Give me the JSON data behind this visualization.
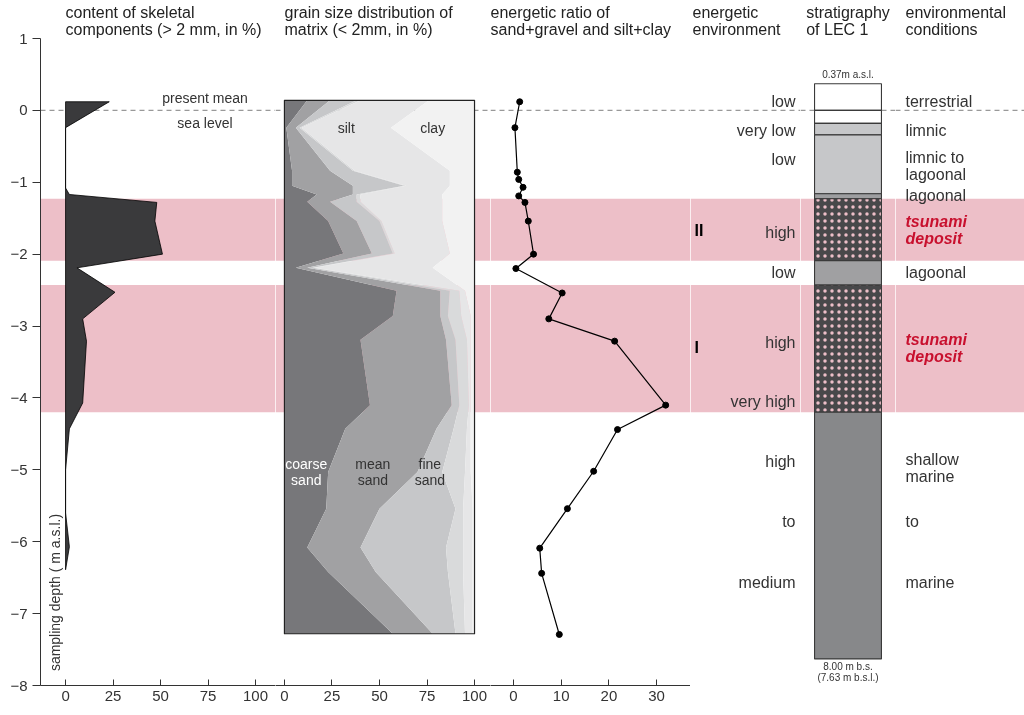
{
  "chart_data": [
    {
      "type": "area",
      "orientation": "horizontal",
      "title": "content of skeletal\ncomponents (> 2 mm, in %)",
      "ylabel": "sampling depth ( m a.s.l.)",
      "color": "#3a3a3c",
      "x": [
        0.12,
        -0.24,
        -1.08,
        -1.17,
        -1.28,
        -1.54,
        -2.0,
        -2.19,
        -2.53,
        -2.9,
        -3.21,
        -4.07,
        -4.43,
        -5.0,
        -5.6,
        -6.07,
        -6.39
      ],
      "values": [
        23,
        0,
        0,
        2,
        48,
        47,
        51,
        6,
        26,
        9,
        11,
        9,
        2,
        0,
        0,
        2,
        0
      ],
      "xlim": [
        -13.2,
        110.5
      ],
      "xticks": [
        0,
        25,
        50,
        75,
        100
      ],
      "ylim": [
        -8,
        1
      ],
      "yticks": [
        1,
        0,
        -1,
        -2,
        -3,
        -4,
        -5,
        -6,
        -7,
        -8
      ],
      "ref_lines": [
        {
          "axis": "y",
          "value": 0,
          "label": "present mean\nsea level",
          "color": "#999999",
          "line_style": "dashed"
        }
      ],
      "bands": [
        {
          "axis": "y",
          "from": -1.23,
          "to": -2.09,
          "color": "#edbfc8"
        },
        {
          "axis": "y",
          "from": -2.43,
          "to": -4.2,
          "color": "#edbfc8"
        }
      ]
    },
    {
      "type": "area",
      "orientation": "horizontal",
      "stacked": true,
      "title": "grain size distribution of\nmatrix (< 2mm, in %)",
      "x": [
        0.14,
        -0.24,
        -0.84,
        -1.05,
        -1.17,
        -1.27,
        -1.54,
        -1.99,
        -2.19,
        -2.51,
        -2.86,
        -3.19,
        -4.1,
        -4.43,
        -5.03,
        -5.54,
        -6.08,
        -6.42,
        -7.28
      ],
      "series": [
        {
          "name": "coarse sand",
          "color": "#77777a",
          "values": [
            12,
            1,
            4,
            4,
            17,
            12,
            23,
            31,
            6,
            59,
            57,
            40,
            45,
            32,
            23,
            22,
            12,
            23,
            57
          ]
        },
        {
          "name": "mean sand",
          "color": "#a1a1a3",
          "values": [
            12,
            5,
            20,
            32,
            19,
            12,
            15,
            15,
            6,
            23,
            25,
            45,
            43,
            48,
            47,
            28,
            28,
            25,
            21
          ]
        },
        {
          "name": "fine sand",
          "color": "#c6c7c9",
          "values": [
            14,
            2,
            12,
            27,
            2,
            14,
            12,
            11,
            3,
            5,
            4,
            5,
            4,
            9,
            13,
            40,
            45,
            38,
            12
          ]
        },
        {
          "color": "#d9dadb",
          "values": [
            2,
            1,
            1,
            1,
            2,
            2,
            1,
            1,
            1,
            5,
            7,
            6,
            5,
            7,
            12,
            4,
            9,
            8,
            5
          ]
        },
        {
          "name": "silt",
          "color": "#e6e6e7",
          "values": [
            36,
            47,
            50,
            23,
            43,
            43,
            32,
            29,
            62,
            3,
            5,
            2,
            1,
            2,
            3,
            5,
            5,
            5,
            4
          ]
        },
        {
          "name": "clay",
          "color": "#f2f2f2",
          "values": [
            24,
            44,
            13,
            13,
            17,
            17,
            17,
            13,
            22,
            5,
            2,
            2,
            2,
            2,
            2,
            1,
            1,
            1,
            1
          ]
        }
      ],
      "xlim": [
        -4.7,
        108.4
      ],
      "xticks": [
        0,
        25,
        50,
        75,
        100
      ],
      "ylim": [
        -8,
        1
      ],
      "tick_labels": "x",
      "ref_lines": [
        {
          "axis": "y",
          "value": 0,
          "color": "#999999",
          "line_style": "dashed"
        }
      ],
      "bands": [
        {
          "axis": "y",
          "from": -1.23,
          "to": -2.09,
          "color": "#edbfc8"
        },
        {
          "axis": "y",
          "from": -2.43,
          "to": -4.2,
          "color": "#edbfc8"
        }
      ]
    },
    {
      "type": "line",
      "orientation": "horizontal",
      "marker": "circle",
      "line_style": "solid",
      "color": "#000000",
      "title": "energetic ratio of\nsand+gravel and silt+clay",
      "x": [
        0.12,
        -0.24,
        -0.86,
        -0.96,
        -1.07,
        -1.19,
        -1.28,
        -1.54,
        -2.0,
        -2.2,
        -2.54,
        -2.9,
        -3.21,
        -4.1,
        -4.44,
        -5.02,
        -5.54,
        -6.09,
        -6.44,
        -7.29
      ],
      "values": [
        1.3,
        0.3,
        0.8,
        1.1,
        2.0,
        1.1,
        2.4,
        3.1,
        4.2,
        0.5,
        10.2,
        7.4,
        21.2,
        31.9,
        21.8,
        16.8,
        11.3,
        5.5,
        5.9,
        9.6
      ],
      "xlim": [
        -4.82,
        37.1
      ],
      "xticks": [
        0,
        10,
        20,
        30
      ],
      "ylim": [
        -8,
        1
      ],
      "tick_labels": "x",
      "ref_lines": [
        {
          "axis": "y",
          "value": 0,
          "color": "#999999",
          "line_style": "dashed"
        }
      ],
      "bands": [
        {
          "axis": "y",
          "from": -1.23,
          "to": -2.09,
          "color": "#edbfc8"
        },
        {
          "axis": "y",
          "from": -2.43,
          "to": -4.2,
          "color": "#edbfc8"
        }
      ]
    },
    {
      "type": "other",
      "title": "energetic\nenvironment",
      "annotations": [
        "low",
        "very low",
        "low",
        "II",
        "high",
        "low",
        "I",
        "high",
        "very high",
        "high",
        "to",
        "medium"
      ]
    },
    {
      "type": "bar",
      "stacked": true,
      "title": "stratigraphy\nof LEC 1",
      "categories": [
        null
      ],
      "ylim": [
        -8,
        1
      ],
      "tick_labels": false,
      "series": [
        {
          "color": "#ffffff",
          "values": [
            0.37
          ]
        },
        {
          "color": "#ffffff",
          "values": [
            -0.18
          ]
        },
        {
          "color": "#c6c7c9",
          "values": [
            -0.16
          ]
        },
        {
          "color": "#c6c7c9",
          "values": [
            -0.82
          ]
        },
        {
          "color": "#9d9ea0",
          "values": [
            -0.07
          ]
        },
        {
          "color": "#48484a",
          "values": [
            -0.86
          ]
        },
        {
          "color": "#a0a0a2",
          "values": [
            -0.34
          ]
        },
        {
          "color": "#48484a",
          "values": [
            -1.77
          ]
        },
        {
          "color": "#87888a",
          "values": [
            -3.43
          ]
        }
      ],
      "annotations": [
        {
          "text": "0.37m a.s.l.",
          "y": 0.37
        },
        {
          "text": "8.00 m b.s.\n(7.63 m b.s.l.)",
          "y": -7.63
        }
      ],
      "ref_lines": [
        {
          "axis": "y",
          "value": 0,
          "color": "#999999",
          "line_style": "dashed"
        }
      ],
      "bands": [
        {
          "axis": "y",
          "from": -1.23,
          "to": -2.09,
          "color": "#edbfc8"
        },
        {
          "axis": "y",
          "from": -2.43,
          "to": -4.2,
          "color": "#edbfc8"
        }
      ]
    },
    {
      "type": "other",
      "title": "environmental\nconditions",
      "annotations": [
        "terrestrial",
        "limnic",
        "limnic to\nlagoonal",
        "lagoonal",
        "tsunami\ndeposit",
        "lagoonal",
        "tsunami\ndeposit",
        "shallow\nmarine",
        "to",
        "marine"
      ]
    }
  ]
}
